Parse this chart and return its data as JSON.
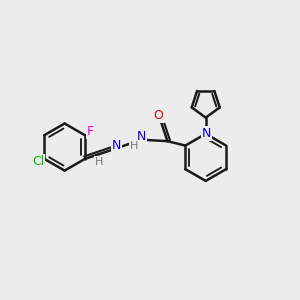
{
  "background_color": "#ececec",
  "bond_color": "#1a1a1a",
  "bond_width": 1.8,
  "atom_colors": {
    "Cl": "#00bb00",
    "F": "#ee00ee",
    "N": "#0000ee",
    "H": "#777777",
    "O": "#ee0000"
  },
  "figsize": [
    3.0,
    3.0
  ],
  "dpi": 100
}
